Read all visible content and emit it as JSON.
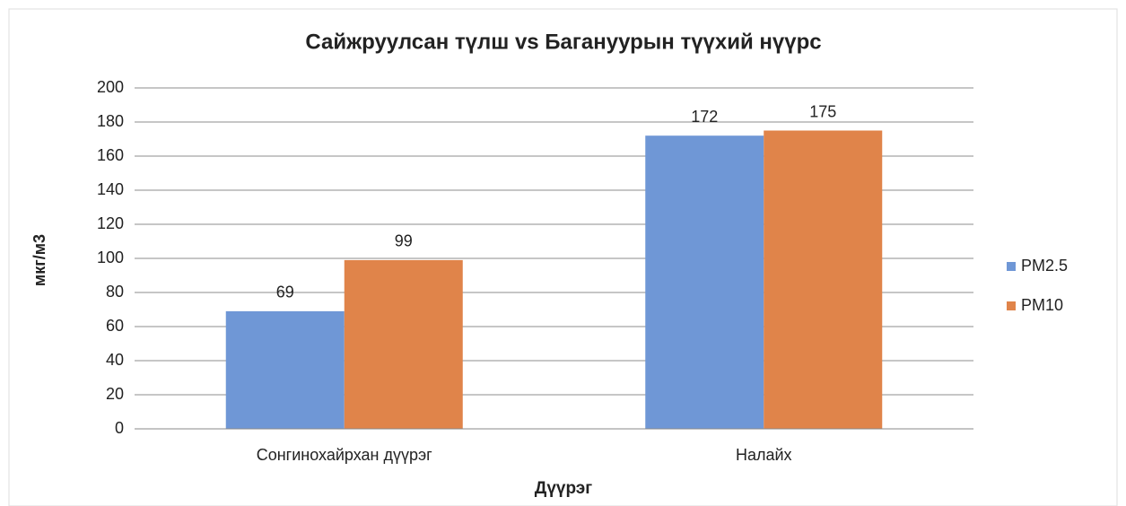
{
  "chart_data": {
    "type": "bar",
    "title": "Сайжруулсан түлш vs Багануурын түүхий нүүрс",
    "x_label": "Дүүрэг",
    "y_label": "мкг/м3",
    "categories": [
      "Сонгинохайрхан дүүрэг",
      "Налайх"
    ],
    "series": [
      {
        "name": "PM2.5",
        "color": "#6f97d6",
        "values": [
          69,
          172
        ]
      },
      {
        "name": "PM10",
        "color": "#e0844a",
        "values": [
          99,
          175
        ]
      }
    ],
    "ylim": [
      0,
      200
    ],
    "yticks": [
      0,
      20,
      40,
      60,
      80,
      100,
      120,
      140,
      160,
      180,
      200
    ],
    "grid": true,
    "legend": "right"
  }
}
